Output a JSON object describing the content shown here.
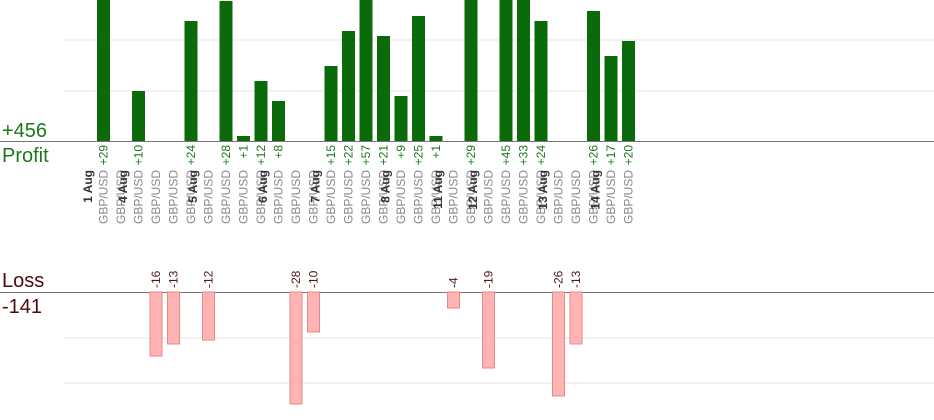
{
  "chart_data": {
    "type": "bar",
    "profit_label": "Profit",
    "profit_total": "+456",
    "loss_label": "Loss",
    "loss_total": "-141",
    "colors": {
      "profit": "#0b6b0b",
      "profit_text": "#1a7a1a",
      "loss": "#ffb3b3",
      "loss_stroke": "#e88888",
      "loss_text": "#4a1a1a",
      "big_profit": "#1a7a1a",
      "big_loss": "#4a0a0a"
    },
    "columns": [
      {
        "day": "1 Aug",
        "pair": "GBP/USD",
        "value": 29
      },
      {
        "pair": "GBP/USD",
        "value": 0
      },
      {
        "day": "4 Aug",
        "pair": "GBP/USD",
        "value": 10
      },
      {
        "pair": "GBP/USD",
        "value": -16
      },
      {
        "pair": "GBP/USD",
        "value": -13
      },
      {
        "pair": "GBP/USD",
        "value": 24
      },
      {
        "day": "5 Aug",
        "pair": "GBP/USD",
        "value": -12
      },
      {
        "pair": "GBP/USD",
        "value": 28
      },
      {
        "pair": "GBP/USD",
        "value": 1
      },
      {
        "pair": "GBP/USD",
        "value": 12
      },
      {
        "day": "6 Aug",
        "pair": "GBP/USD",
        "value": 8
      },
      {
        "pair": "GBP/USD",
        "value": -28
      },
      {
        "pair": "GBP/USD",
        "value": -10
      },
      {
        "day": "7 Aug",
        "pair": "GBP/USD",
        "value": 15
      },
      {
        "pair": "GBP/USD",
        "value": 22
      },
      {
        "pair": "GBP/USD",
        "value": 57
      },
      {
        "pair": "GBP/USD",
        "value": 21
      },
      {
        "day": "8 Aug",
        "pair": "GBP/USD",
        "value": 9
      },
      {
        "pair": "GBP/USD",
        "value": 25
      },
      {
        "pair": "GBP/USD",
        "value": 1
      },
      {
        "day": "11 Aug",
        "pair": "GBP/USD",
        "value": -4
      },
      {
        "pair": "GBP/USD",
        "value": 29
      },
      {
        "day": "12 Aug",
        "pair": "GBP/USD",
        "value": -19
      },
      {
        "pair": "GBP/USD",
        "value": 45
      },
      {
        "pair": "GBP/USD",
        "value": 33
      },
      {
        "pair": "GBP/USD",
        "value": 24
      },
      {
        "day": "13 Aug",
        "pair": "GBP/USD",
        "value": -26
      },
      {
        "pair": "GBP/USD",
        "value": -13
      },
      {
        "pair": "GBP/USD",
        "value": 26
      },
      {
        "day": "14 Aug",
        "pair": "GBP/USD",
        "value": 17
      },
      {
        "pair": "GBP/USD",
        "value": 20
      }
    ]
  }
}
